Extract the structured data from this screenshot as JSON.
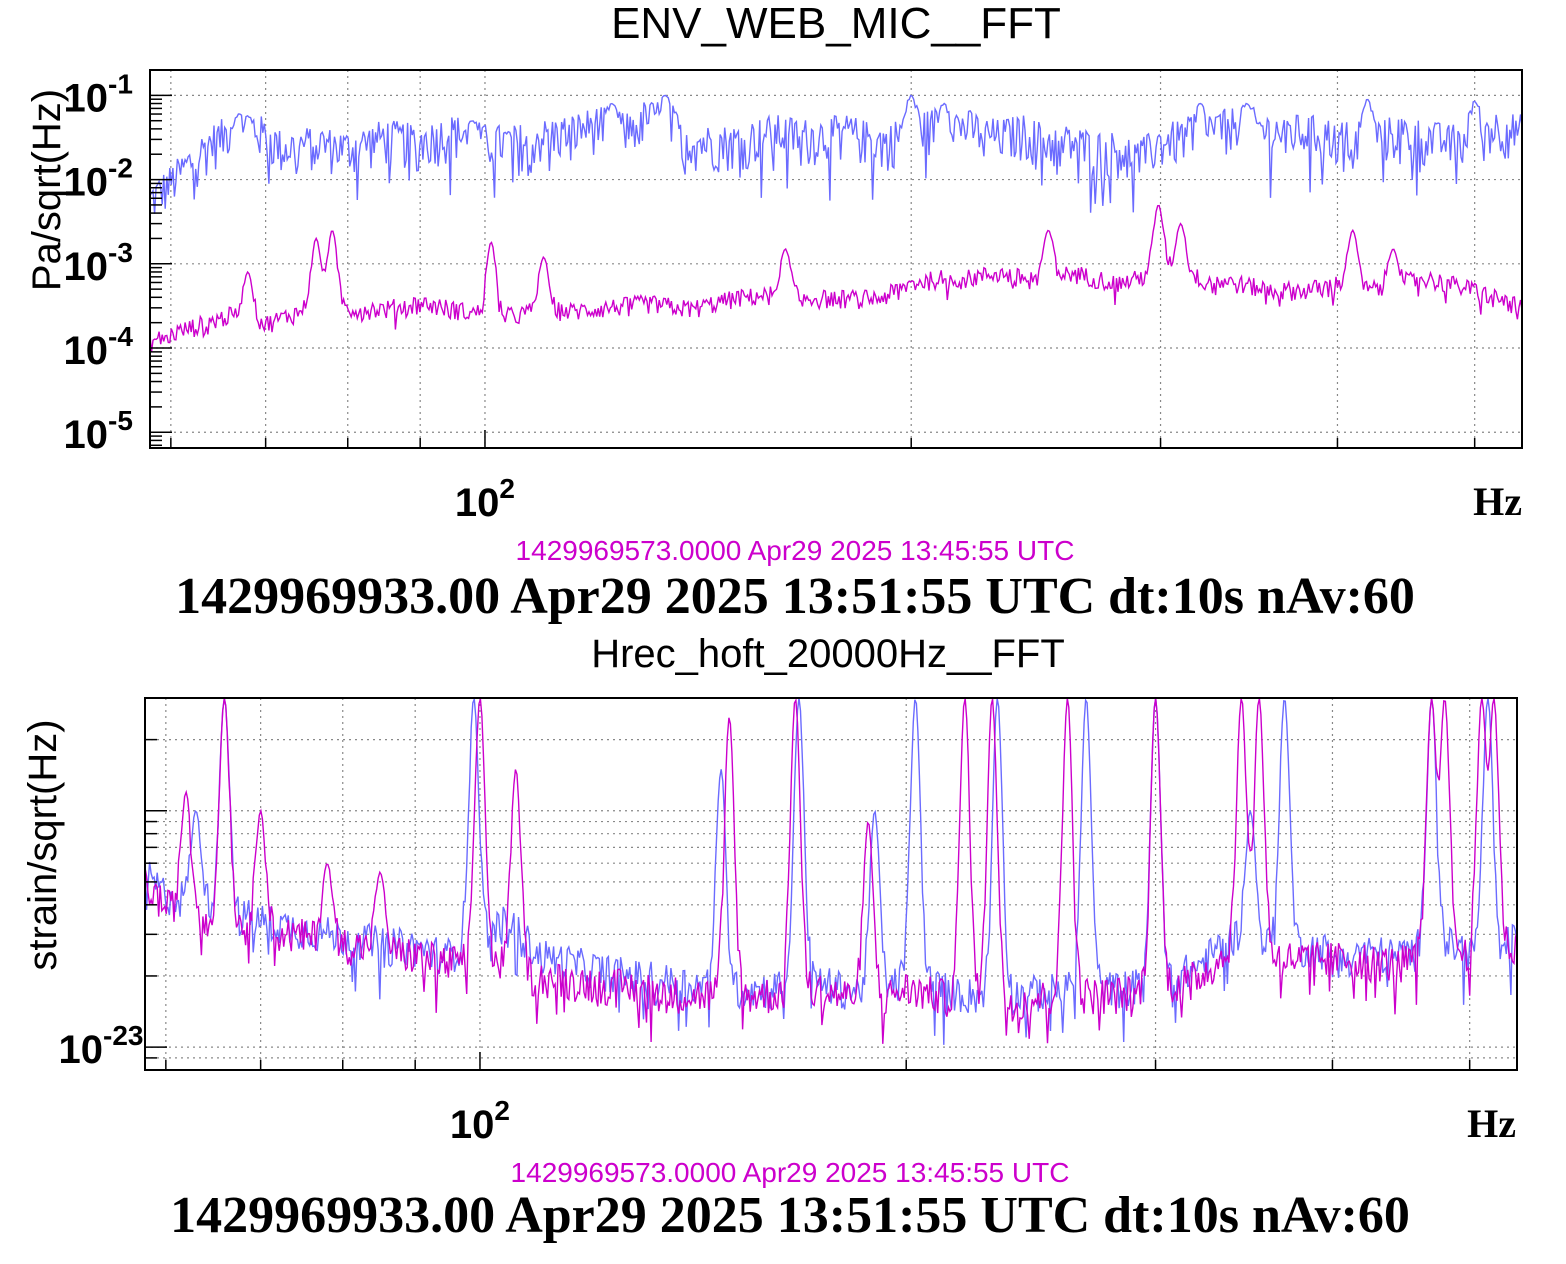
{
  "colors": {
    "reference_series": "#6b6bff",
    "current_series": "#cc00cc",
    "grid": "#888888",
    "axis": "#000000"
  },
  "chart_data": [
    {
      "type": "line",
      "title": "ENV_WEB_MIC__FFT",
      "ylabel": "Pa/sqrt(Hz)",
      "xlabel": "Hz",
      "x_scale": "log",
      "y_scale": "log",
      "xlim": [
        58,
        540
      ],
      "ylim": [
        6.5e-06,
        0.2
      ],
      "grid": true,
      "x_tick_labels": [
        {
          "base": "10",
          "exp": "2",
          "value": 100
        }
      ],
      "y_tick_labels": [
        {
          "base": "10",
          "exp": "-1",
          "value": 0.1
        },
        {
          "base": "10",
          "exp": "-2",
          "value": 0.01
        },
        {
          "base": "10",
          "exp": "-3",
          "value": 0.001
        },
        {
          "base": "10",
          "exp": "-4",
          "value": 0.0001
        },
        {
          "base": "10",
          "exp": "-5",
          "value": 1e-05
        }
      ],
      "reference_time": "1429969573.0000 Apr29 2025 13:45:55 UTC",
      "footer": "1429969933.00 Apr29 2025 13:51:55 UTC dt:10s nAv:60",
      "series": [
        {
          "color": "#6b6bff",
          "x": [
            58,
            60,
            64,
            68,
            72,
            76,
            80,
            85,
            90,
            95,
            100,
            105,
            110,
            115,
            120,
            125,
            130,
            135,
            140,
            150,
            160,
            170,
            180,
            190,
            200,
            210,
            220,
            230,
            240,
            250,
            260,
            270,
            280,
            290,
            300,
            320,
            340,
            360,
            380,
            400,
            420,
            440,
            460,
            480,
            500,
            520,
            540
          ],
          "y": [
            0.006,
            0.01,
            0.03,
            0.05,
            0.025,
            0.03,
            0.025,
            0.035,
            0.03,
            0.04,
            0.03,
            0.03,
            0.035,
            0.04,
            0.05,
            0.04,
            0.06,
            0.05,
            0.03,
            0.03,
            0.04,
            0.035,
            0.04,
            0.03,
            0.04,
            0.05,
            0.045,
            0.035,
            0.04,
            0.03,
            0.03,
            0.025,
            0.025,
            0.02,
            0.03,
            0.04,
            0.05,
            0.04,
            0.04,
            0.035,
            0.03,
            0.04,
            0.035,
            0.03,
            0.04,
            0.045,
            0.04
          ],
          "peaks": [
            {
              "x": 67,
              "y": 0.06
            },
            {
              "x": 98,
              "y": 0.05
            },
            {
              "x": 123,
              "y": 0.08
            },
            {
              "x": 134,
              "y": 0.1
            },
            {
              "x": 200,
              "y": 0.1
            },
            {
              "x": 211,
              "y": 0.08
            },
            {
              "x": 320,
              "y": 0.08
            },
            {
              "x": 345,
              "y": 0.08
            },
            {
              "x": 420,
              "y": 0.09
            },
            {
              "x": 500,
              "y": 0.085
            }
          ]
        },
        {
          "color": "#cc00cc",
          "x": [
            58,
            60,
            62,
            66,
            70,
            75,
            80,
            85,
            90,
            95,
            100,
            105,
            110,
            115,
            120,
            130,
            140,
            150,
            160,
            170,
            180,
            190,
            200,
            210,
            220,
            230,
            240,
            250,
            260,
            270,
            280,
            290,
            300,
            320,
            340,
            360,
            380,
            400,
            420,
            440,
            460,
            480,
            500,
            520,
            540
          ],
          "y": [
            0.00012,
            0.00015,
            0.00018,
            0.00025,
            0.0002,
            0.0003,
            0.0003,
            0.0003,
            0.00035,
            0.0003,
            0.00025,
            0.00025,
            0.0003,
            0.00028,
            0.0003,
            0.00035,
            0.0003,
            0.0004,
            0.00045,
            0.0004,
            0.0004,
            0.0004,
            0.0006,
            0.0007,
            0.0007,
            0.0008,
            0.0007,
            0.0007,
            0.0008,
            0.0007,
            0.0006,
            0.0007,
            0.0009,
            0.0007,
            0.0006,
            0.0005,
            0.0005,
            0.0006,
            0.0005,
            0.0006,
            0.0007,
            0.0006,
            0.0005,
            0.0004,
            0.0003
          ],
          "peaks": [
            {
              "x": 68,
              "y": 0.0008
            },
            {
              "x": 76,
              "y": 0.002
            },
            {
              "x": 78,
              "y": 0.0025
            },
            {
              "x": 101,
              "y": 0.0018
            },
            {
              "x": 110,
              "y": 0.0012
            },
            {
              "x": 163,
              "y": 0.0015
            },
            {
              "x": 250,
              "y": 0.0025
            },
            {
              "x": 299,
              "y": 0.005
            },
            {
              "x": 310,
              "y": 0.003
            },
            {
              "x": 410,
              "y": 0.0025
            },
            {
              "x": 438,
              "y": 0.0015
            }
          ]
        }
      ]
    },
    {
      "type": "line",
      "title": "Hrec_hoft_20000Hz__FFT",
      "ylabel": "strain/sqrt(Hz)",
      "xlabel": "Hz",
      "x_scale": "log",
      "y_scale": "log",
      "xlim": [
        58,
        540
      ],
      "ylim": [
        8e-24,
        3e-22
      ],
      "grid": true,
      "x_tick_labels": [
        {
          "base": "10",
          "exp": "2",
          "value": 100
        }
      ],
      "y_tick_labels": [
        {
          "base": "10",
          "exp": "-23",
          "value": 1e-23
        }
      ],
      "reference_time": "1429969573.0000 Apr29 2025 13:45:55 UTC",
      "footer": "1429969933.00 Apr29 2025 13:51:55 UTC dt:10s nAv:60",
      "series": [
        {
          "color": "#6b6bff",
          "x": [
            58,
            60,
            65,
            70,
            75,
            80,
            85,
            90,
            95,
            100,
            105,
            110,
            120,
            130,
            140,
            150,
            160,
            170,
            180,
            190,
            200,
            220,
            240,
            260,
            280,
            300,
            320,
            340,
            360,
            380,
            400,
            420,
            440,
            460,
            480,
            500,
            520,
            540
          ],
          "y": [
            5.5e-23,
            4.5e-23,
            4e-23,
            3.5e-23,
            3.2e-23,
            3e-23,
            2.8e-23,
            2.7e-23,
            2.5e-23,
            3e-23,
            3.5e-23,
            2.5e-23,
            2.2e-23,
            2e-23,
            1.9e-23,
            1.8e-23,
            1.8e-23,
            2e-23,
            1.8e-23,
            1.7e-23,
            2e-23,
            1.7e-23,
            1.7e-23,
            1.8e-23,
            1.8e-23,
            1.9e-23,
            2.2e-23,
            3e-23,
            2.8e-23,
            2.7e-23,
            2.6e-23,
            2.6e-23,
            2.5e-23,
            2.6e-23,
            2.8e-23,
            2.6e-23,
            2.5e-23,
            3e-23
          ],
          "peaks": [
            {
              "x": 63,
              "y": 1e-22
            },
            {
              "x": 66,
              "y": 3e-22
            },
            {
              "x": 99,
              "y": 3e-22
            },
            {
              "x": 148,
              "y": 1.5e-22
            },
            {
              "x": 168,
              "y": 3e-22
            },
            {
              "x": 190,
              "y": 1e-22
            },
            {
              "x": 203,
              "y": 3e-22
            },
            {
              "x": 232,
              "y": 3e-22
            },
            {
              "x": 268,
              "y": 3e-22
            },
            {
              "x": 300,
              "y": 3e-22
            },
            {
              "x": 350,
              "y": 1e-22
            },
            {
              "x": 370,
              "y": 3e-22
            },
            {
              "x": 470,
              "y": 3e-22
            },
            {
              "x": 515,
              "y": 3e-22
            }
          ]
        },
        {
          "color": "#cc00cc",
          "x": [
            58,
            60,
            65,
            70,
            75,
            80,
            85,
            90,
            95,
            100,
            105,
            110,
            120,
            130,
            140,
            150,
            160,
            170,
            180,
            190,
            200,
            220,
            240,
            260,
            280,
            300,
            320,
            340,
            360,
            380,
            400,
            420,
            440,
            460,
            480,
            500,
            520,
            540
          ],
          "y": [
            5e-23,
            4e-23,
            3.6e-23,
            3.2e-23,
            3e-23,
            2.8e-23,
            2.6e-23,
            2.5e-23,
            2.3e-23,
            2.5e-23,
            2.2e-23,
            2e-23,
            1.9e-23,
            1.8e-23,
            1.7e-23,
            1.7e-23,
            1.7e-23,
            1.8e-23,
            1.7e-23,
            1.6e-23,
            1.8e-23,
            1.6e-23,
            1.6e-23,
            1.7e-23,
            1.7e-23,
            1.8e-23,
            2e-23,
            2.6e-23,
            2.5e-23,
            2.4e-23,
            2.4e-23,
            2.4e-23,
            2.3e-23,
            2.4e-23,
            2.6e-23,
            2.5e-23,
            2.4e-23,
            2.8e-23
          ],
          "peaks": [
            {
              "x": 62,
              "y": 1.2e-22
            },
            {
              "x": 66,
              "y": 3e-22
            },
            {
              "x": 70,
              "y": 1e-22
            },
            {
              "x": 78,
              "y": 6e-23
            },
            {
              "x": 85,
              "y": 5.5e-23
            },
            {
              "x": 100,
              "y": 3e-22
            },
            {
              "x": 106,
              "y": 1.5e-22
            },
            {
              "x": 150,
              "y": 2.5e-22
            },
            {
              "x": 167,
              "y": 3e-22
            },
            {
              "x": 188,
              "y": 9e-23
            },
            {
              "x": 220,
              "y": 3e-22
            },
            {
              "x": 230,
              "y": 3e-22
            },
            {
              "x": 260,
              "y": 3e-22
            },
            {
              "x": 300,
              "y": 3e-22
            },
            {
              "x": 345,
              "y": 3e-22
            },
            {
              "x": 355,
              "y": 3e-22
            },
            {
              "x": 470,
              "y": 3e-22
            },
            {
              "x": 480,
              "y": 3e-22
            },
            {
              "x": 510,
              "y": 3e-22
            },
            {
              "x": 520,
              "y": 3e-22
            }
          ]
        }
      ]
    }
  ]
}
